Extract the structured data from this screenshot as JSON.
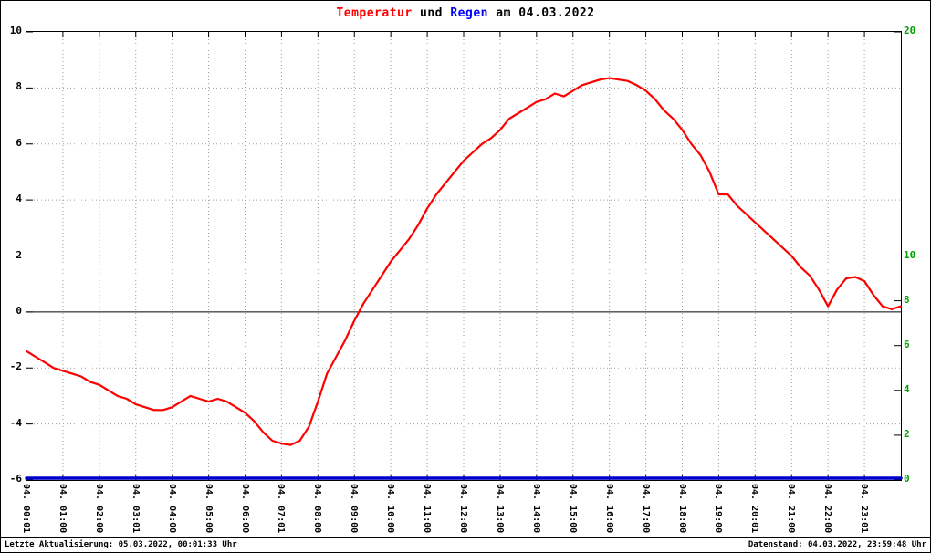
{
  "title": {
    "part_temperature": "Temperatur",
    "part_und": " und ",
    "part_regen": "Regen",
    "part_date": " am 04.03.2022"
  },
  "footer": {
    "left": "Letzte Aktualisierung: 05.03.2022, 00:01:33 Uhr",
    "right": "Datenstand: 04.03.2022, 23:59:48 Uhr"
  },
  "colors": {
    "temperature": "#ff0000",
    "rain": "#0000cc",
    "right_axis_text": "#00a000",
    "grid": "#9a9a9a",
    "axis": "#000000"
  },
  "chart_data": {
    "type": "line",
    "title": "Temperatur und Regen am 04.03.2022",
    "grid": true,
    "x_unit": "hours",
    "x_range": [
      0,
      24
    ],
    "x_tick_labels": [
      "04. 00:01",
      "04. 01:00",
      "04. 02:00",
      "04. 03:01",
      "04. 04:00",
      "04. 05:00",
      "04. 06:00",
      "04. 07:01",
      "04. 08:00",
      "04. 09:00",
      "04. 10:00",
      "04. 11:00",
      "04. 12:00",
      "04. 13:00",
      "04. 14:00",
      "04. 15:00",
      "04. 16:00",
      "04. 17:00",
      "04. 18:00",
      "04. 19:00",
      "04. 20:01",
      "04. 21:00",
      "04. 22:00",
      "04. 23:01"
    ],
    "left_axis": {
      "range": [
        -6,
        10
      ],
      "ticks": [
        10,
        8,
        6,
        4,
        2,
        0,
        -2,
        -4,
        -6
      ],
      "zero_line": true
    },
    "right_axis": {
      "range": [
        0,
        20
      ],
      "ticks": [
        20,
        10,
        8,
        6,
        4,
        2,
        0
      ]
    },
    "series": [
      {
        "name": "Temperatur",
        "axis": "left",
        "color": "#ff0000",
        "x": [
          0,
          0.25,
          0.5,
          0.75,
          1,
          1.25,
          1.5,
          1.75,
          2,
          2.25,
          2.5,
          2.75,
          3,
          3.25,
          3.5,
          3.75,
          4,
          4.25,
          4.5,
          4.75,
          5,
          5.25,
          5.5,
          5.75,
          6,
          6.25,
          6.5,
          6.75,
          7,
          7.25,
          7.5,
          7.75,
          8,
          8.25,
          8.5,
          8.75,
          9,
          9.25,
          9.5,
          9.75,
          10,
          10.25,
          10.5,
          10.75,
          11,
          11.25,
          11.5,
          11.75,
          12,
          12.25,
          12.5,
          12.75,
          13,
          13.25,
          13.5,
          13.75,
          14,
          14.25,
          14.5,
          14.75,
          15,
          15.25,
          15.5,
          15.75,
          16,
          16.25,
          16.5,
          16.75,
          17,
          17.25,
          17.5,
          17.75,
          18,
          18.25,
          18.5,
          18.75,
          19,
          19.25,
          19.5,
          19.75,
          20,
          20.25,
          20.5,
          20.75,
          21,
          21.25,
          21.5,
          21.75,
          22,
          22.25,
          22.5,
          22.75,
          23,
          23.25,
          23.5,
          23.75,
          24
        ],
        "values": [
          -1.4,
          -1.6,
          -1.8,
          -2.0,
          -2.1,
          -2.2,
          -2.3,
          -2.5,
          -2.6,
          -2.8,
          -3.0,
          -3.1,
          -3.3,
          -3.4,
          -3.5,
          -3.5,
          -3.4,
          -3.2,
          -3.0,
          -3.1,
          -3.2,
          -3.1,
          -3.2,
          -3.4,
          -3.6,
          -3.9,
          -4.3,
          -4.6,
          -4.7,
          -4.75,
          -4.6,
          -4.1,
          -3.2,
          -2.2,
          -1.6,
          -1.0,
          -0.3,
          0.3,
          0.8,
          1.3,
          1.8,
          2.2,
          2.6,
          3.1,
          3.7,
          4.2,
          4.6,
          5.0,
          5.4,
          5.7,
          6.0,
          6.2,
          6.5,
          6.9,
          7.1,
          7.3,
          7.5,
          7.6,
          7.8,
          7.7,
          7.9,
          8.1,
          8.2,
          8.3,
          8.35,
          8.3,
          8.25,
          8.1,
          7.9,
          7.6,
          7.2,
          6.9,
          6.5,
          6.0,
          5.6,
          5.0,
          4.2,
          4.2,
          3.8,
          3.5,
          3.2,
          2.9,
          2.6,
          2.3,
          2.0,
          1.6,
          1.3,
          0.8,
          0.2,
          0.8,
          1.2,
          1.25,
          1.1,
          0.6,
          0.2,
          0.1,
          0.2
        ]
      },
      {
        "name": "Regen",
        "axis": "right",
        "color": "#0000cc",
        "x": [
          0,
          24
        ],
        "values": [
          0,
          0
        ]
      }
    ]
  }
}
